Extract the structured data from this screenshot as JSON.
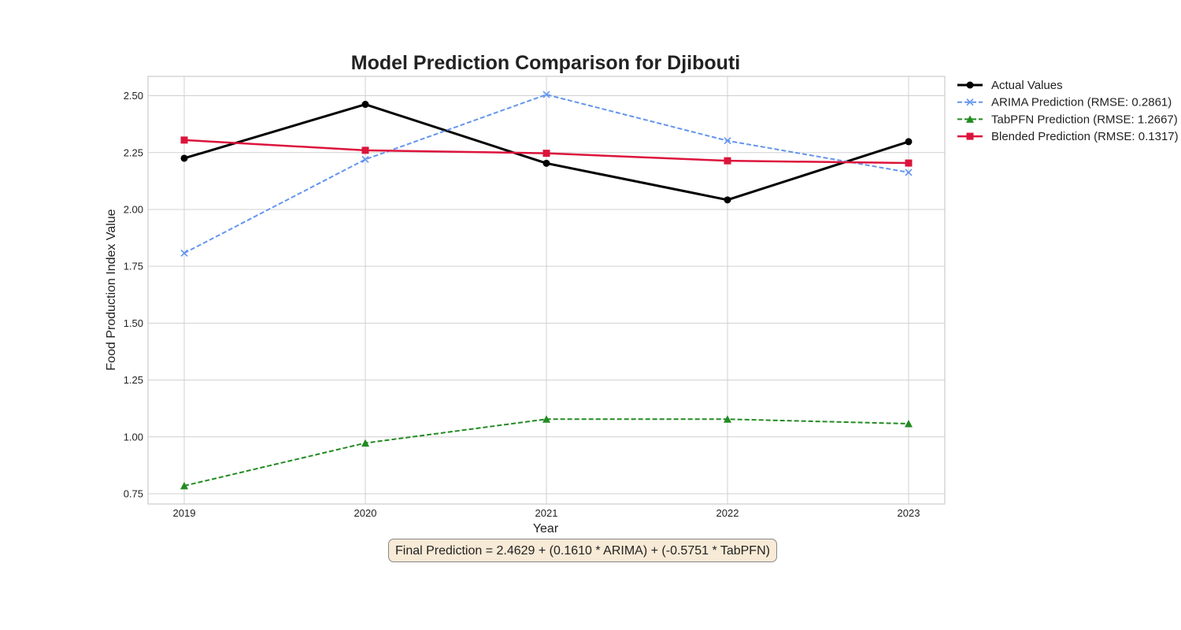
{
  "chart_data": {
    "type": "line",
    "title": "Model Prediction Comparison for Djibouti",
    "xlabel": "Year",
    "ylabel": "Food Production Index Value",
    "x": [
      2019,
      2020,
      2021,
      2022,
      2023
    ],
    "x_tick_labels": [
      "2019",
      "2020",
      "2021",
      "2022",
      "2023"
    ],
    "y_ticks": [
      0.75,
      1.0,
      1.25,
      1.5,
      1.75,
      2.0,
      2.25,
      2.5
    ],
    "y_tick_labels": [
      "0.75",
      "1.00",
      "1.25",
      "1.50",
      "1.75",
      "2.00",
      "2.25",
      "2.50"
    ],
    "xlim": [
      2018.8,
      2023.2
    ],
    "ylim": [
      0.705,
      2.585
    ],
    "grid": true,
    "legend_position": "outside-top-right",
    "series": [
      {
        "name": "Actual Values",
        "values": [
          2.225,
          2.462,
          2.203,
          2.042,
          2.298
        ],
        "color": "#000000",
        "dash": "solid",
        "marker": "circle"
      },
      {
        "name": "ARIMA Prediction (RMSE: 0.2861)",
        "values": [
          1.808,
          2.22,
          2.505,
          2.302,
          2.163
        ],
        "color": "#6495ed",
        "dash": "dashed",
        "marker": "x"
      },
      {
        "name": "TabPFN Prediction (RMSE: 1.2667)",
        "values": [
          0.785,
          0.973,
          1.078,
          1.078,
          1.058
        ],
        "color": "#228b22",
        "dash": "dashed",
        "marker": "triangle"
      },
      {
        "name": "Blended Prediction (RMSE: 0.1317)",
        "values": [
          2.305,
          2.26,
          2.247,
          2.214,
          2.204
        ],
        "color": "#dc143c",
        "dash": "solid",
        "marker": "square"
      }
    ],
    "annotation": "Final Prediction = 2.4629 + (0.1610 * ARIMA) + (-0.5751 * TabPFN)"
  }
}
